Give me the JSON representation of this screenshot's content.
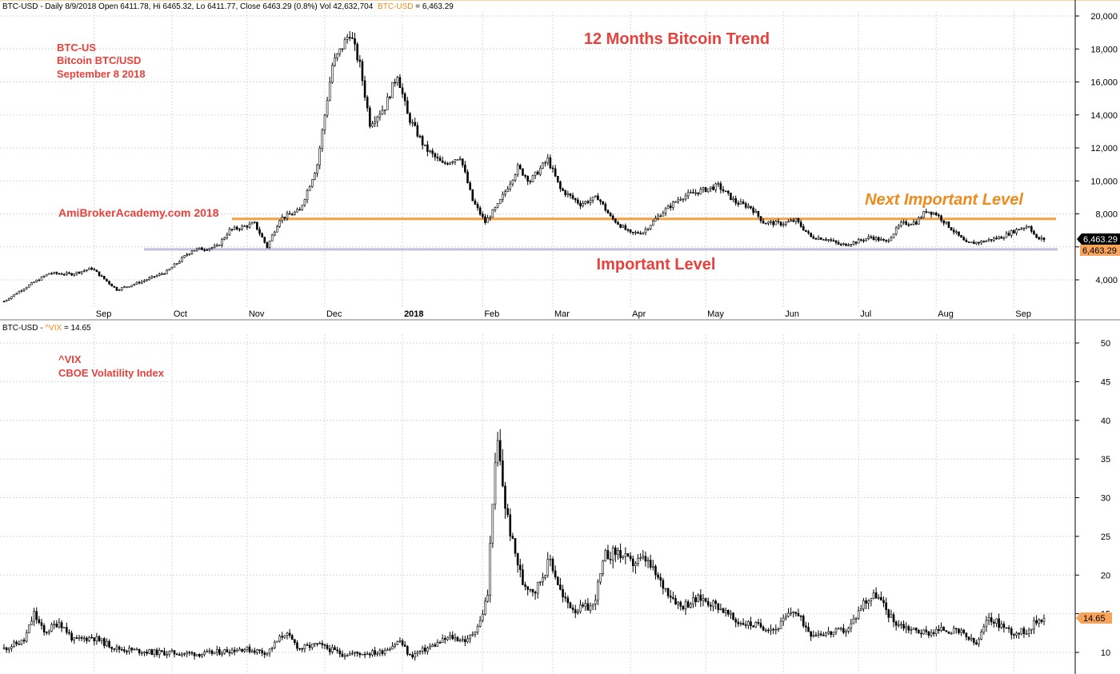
{
  "header_top": {
    "prefix": "BTC-USD - Daily 8/9/2018 Open 6411.78, Hi 6465.32, Lo 6411.77, Close 6463.29 (0.8%) Vol 42,632,704",
    "series": "BTC-USD",
    "value": " = 6,463.29"
  },
  "header_bottom": {
    "prefix": "BTC-USD - ",
    "series": "^VIX",
    "value": " = 14.65"
  },
  "annotations": {
    "title": "12 Months Bitcoin Trend",
    "info_line1": "BTC-US",
    "info_line2": "Bitcoin BTC/USD",
    "info_line3": "September 8 2018",
    "watermark": "AmiBrokerAcademy.com  2018",
    "next_level": "Next Important Level",
    "important_level": "Important Level",
    "vix_line1": "^VIX",
    "vix_line2": "CBOE Volatility Index"
  },
  "badges": {
    "btc_last": "6,463.29",
    "btc_last2": "6,463.29",
    "vix_last": "14.65"
  },
  "colors": {
    "candle": "#000000",
    "next_level_line": "#f5a043",
    "important_level_line": "#c5bde0",
    "annotation_red": "#e8413c",
    "annotation_orange": "#f08a1c",
    "badge_orange": "#f7a35a",
    "grid": "#d9d9d9"
  },
  "chart_data": [
    {
      "type": "candlestick",
      "series_name": "BTC-USD",
      "ylim": [
        2000,
        21000
      ],
      "yticks": [
        4000,
        6000,
        8000,
        10000,
        12000,
        14000,
        16000,
        18000,
        20000
      ],
      "ytick_labels": [
        "4,000",
        "6,000",
        "8,000",
        "10,000",
        "12,000",
        "14,000",
        "16,000",
        "18,000",
        "20,000"
      ],
      "xticks": [
        "Sep",
        "Oct",
        "Nov",
        "Dec",
        "2018",
        "Feb",
        "Mar",
        "Apr",
        "May",
        "Jun",
        "Jul",
        "Aug",
        "Sep"
      ],
      "levels": [
        {
          "name": "Next Important Level",
          "value": 7700
        },
        {
          "name": "Important Level",
          "value": 5850
        }
      ],
      "last_value": 6463.29,
      "path": [
        {
          "t": 0,
          "v": 2700
        },
        {
          "t": 8,
          "v": 3500
        },
        {
          "t": 18,
          "v": 4400
        },
        {
          "t": 27,
          "v": 4350
        },
        {
          "t": 35,
          "v": 4700
        },
        {
          "t": 45,
          "v": 3400
        },
        {
          "t": 55,
          "v": 3900
        },
        {
          "t": 65,
          "v": 4500
        },
        {
          "t": 75,
          "v": 5800
        },
        {
          "t": 85,
          "v": 6000
        },
        {
          "t": 90,
          "v": 7000
        },
        {
          "t": 100,
          "v": 7400
        },
        {
          "t": 105,
          "v": 6000
        },
        {
          "t": 110,
          "v": 7700
        },
        {
          "t": 118,
          "v": 8200
        },
        {
          "t": 125,
          "v": 11000
        },
        {
          "t": 131,
          "v": 17000
        },
        {
          "t": 138,
          "v": 19000
        },
        {
          "t": 142,
          "v": 17000
        },
        {
          "t": 146,
          "v": 13500
        },
        {
          "t": 152,
          "v": 14500
        },
        {
          "t": 157,
          "v": 16500
        },
        {
          "t": 161,
          "v": 14000
        },
        {
          "t": 168,
          "v": 12000
        },
        {
          "t": 175,
          "v": 11000
        },
        {
          "t": 182,
          "v": 11500
        },
        {
          "t": 187,
          "v": 8800
        },
        {
          "t": 192,
          "v": 7500
        },
        {
          "t": 197,
          "v": 8500
        },
        {
          "t": 205,
          "v": 10800
        },
        {
          "t": 210,
          "v": 10000
        },
        {
          "t": 217,
          "v": 11300
        },
        {
          "t": 222,
          "v": 9500
        },
        {
          "t": 230,
          "v": 8600
        },
        {
          "t": 237,
          "v": 9000
        },
        {
          "t": 242,
          "v": 7800
        },
        {
          "t": 250,
          "v": 6800
        },
        {
          "t": 255,
          "v": 6900
        },
        {
          "t": 262,
          "v": 8000
        },
        {
          "t": 270,
          "v": 9000
        },
        {
          "t": 278,
          "v": 9400
        },
        {
          "t": 285,
          "v": 9700
        },
        {
          "t": 292,
          "v": 8700
        },
        {
          "t": 298,
          "v": 8400
        },
        {
          "t": 303,
          "v": 7500
        },
        {
          "t": 310,
          "v": 7400
        },
        {
          "t": 316,
          "v": 7600
        },
        {
          "t": 322,
          "v": 6600
        },
        {
          "t": 328,
          "v": 6500
        },
        {
          "t": 334,
          "v": 6100
        },
        {
          "t": 340,
          "v": 6300
        },
        {
          "t": 346,
          "v": 6600
        },
        {
          "t": 352,
          "v": 6300
        },
        {
          "t": 358,
          "v": 7400
        },
        {
          "t": 364,
          "v": 7500
        },
        {
          "t": 368,
          "v": 8200
        },
        {
          "t": 372,
          "v": 8000
        },
        {
          "t": 378,
          "v": 7100
        },
        {
          "t": 384,
          "v": 6200
        },
        {
          "t": 390,
          "v": 6300
        },
        {
          "t": 398,
          "v": 6600
        },
        {
          "t": 405,
          "v": 7100
        },
        {
          "t": 409,
          "v": 7300
        },
        {
          "t": 412,
          "v": 6500
        },
        {
          "t": 415,
          "v": 6463
        }
      ]
    },
    {
      "type": "candlestick",
      "series_name": "^VIX",
      "ylim": [
        9,
        51
      ],
      "yticks": [
        10,
        15,
        20,
        25,
        30,
        35,
        40,
        45,
        50
      ],
      "ytick_labels": [
        "10",
        "15",
        "20",
        "25",
        "30",
        "35",
        "40",
        "45",
        "50"
      ],
      "last_value": 14.65,
      "path": [
        {
          "t": 0,
          "v": 10.5
        },
        {
          "t": 8,
          "v": 11.5
        },
        {
          "t": 12,
          "v": 15.0
        },
        {
          "t": 16,
          "v": 12.5
        },
        {
          "t": 22,
          "v": 14.0
        },
        {
          "t": 28,
          "v": 11.5
        },
        {
          "t": 35,
          "v": 12.0
        },
        {
          "t": 45,
          "v": 10.5
        },
        {
          "t": 60,
          "v": 10.0
        },
        {
          "t": 80,
          "v": 9.8
        },
        {
          "t": 95,
          "v": 10.5
        },
        {
          "t": 105,
          "v": 10.0
        },
        {
          "t": 112,
          "v": 12.5
        },
        {
          "t": 118,
          "v": 10.5
        },
        {
          "t": 125,
          "v": 11.0
        },
        {
          "t": 135,
          "v": 9.8
        },
        {
          "t": 150,
          "v": 10.0
        },
        {
          "t": 158,
          "v": 11.5
        },
        {
          "t": 162,
          "v": 9.5
        },
        {
          "t": 172,
          "v": 11.0
        },
        {
          "t": 178,
          "v": 12.0
        },
        {
          "t": 185,
          "v": 11.5
        },
        {
          "t": 190,
          "v": 14.0
        },
        {
          "t": 193,
          "v": 17.5
        },
        {
          "t": 195,
          "v": 30.0
        },
        {
          "t": 197,
          "v": 37.0
        },
        {
          "t": 200,
          "v": 29.0
        },
        {
          "t": 203,
          "v": 24.0
        },
        {
          "t": 207,
          "v": 19.0
        },
        {
          "t": 212,
          "v": 18.0
        },
        {
          "t": 218,
          "v": 22.0
        },
        {
          "t": 223,
          "v": 17.0
        },
        {
          "t": 228,
          "v": 15.5
        },
        {
          "t": 235,
          "v": 16.0
        },
        {
          "t": 240,
          "v": 22.5
        },
        {
          "t": 245,
          "v": 23.0
        },
        {
          "t": 250,
          "v": 21.5
        },
        {
          "t": 256,
          "v": 22.0
        },
        {
          "t": 262,
          "v": 19.0
        },
        {
          "t": 270,
          "v": 16.0
        },
        {
          "t": 278,
          "v": 17.0
        },
        {
          "t": 285,
          "v": 16.0
        },
        {
          "t": 292,
          "v": 14.0
        },
        {
          "t": 300,
          "v": 13.5
        },
        {
          "t": 308,
          "v": 13.0
        },
        {
          "t": 315,
          "v": 15.5
        },
        {
          "t": 322,
          "v": 12.5
        },
        {
          "t": 330,
          "v": 12.5
        },
        {
          "t": 337,
          "v": 13.0
        },
        {
          "t": 343,
          "v": 16.5
        },
        {
          "t": 348,
          "v": 17.5
        },
        {
          "t": 355,
          "v": 14.0
        },
        {
          "t": 362,
          "v": 13.0
        },
        {
          "t": 368,
          "v": 12.5
        },
        {
          "t": 375,
          "v": 13.0
        },
        {
          "t": 382,
          "v": 12.5
        },
        {
          "t": 388,
          "v": 11.0
        },
        {
          "t": 393,
          "v": 14.5
        },
        {
          "t": 398,
          "v": 13.5
        },
        {
          "t": 403,
          "v": 12.5
        },
        {
          "t": 408,
          "v": 12.8
        },
        {
          "t": 412,
          "v": 14.0
        },
        {
          "t": 415,
          "v": 14.65
        }
      ]
    }
  ]
}
